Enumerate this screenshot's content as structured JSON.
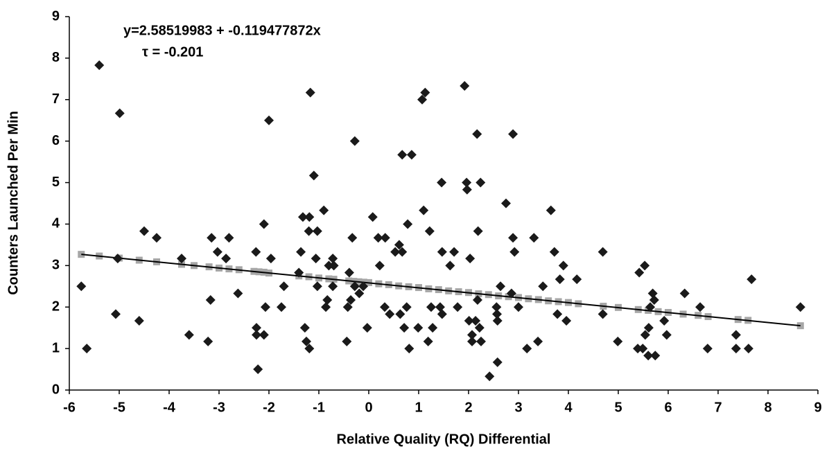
{
  "chart_data": {
    "type": "scatter",
    "annotations": [
      "y=2.58519983 + -0.119477872x",
      "τ = -0.201"
    ],
    "x_label": "Relative Quality (RQ) Differential",
    "y_label": "Counters Launched Per Min",
    "xlim": [
      -6,
      9
    ],
    "xticks": [
      -6,
      -5,
      -4,
      -3,
      -2,
      -1,
      0,
      1,
      2,
      3,
      4,
      5,
      6,
      7,
      8,
      9
    ],
    "ylim": [
      0,
      9
    ],
    "yticks": [
      0,
      1,
      2,
      3,
      4,
      5,
      6,
      7,
      8,
      9
    ],
    "grid": false,
    "series": [
      {
        "color": "#1a1a1a",
        "marker": "diamond",
        "x": [
          -5.76,
          -5.65,
          -5.4,
          -5.07,
          -4.99,
          -5.03,
          -4.6,
          -4.5,
          -4.25,
          -3.75,
          -3.6,
          -3.22,
          -3.17,
          -3.15,
          -3.03,
          -2.86,
          -2.8,
          -2.62,
          -2.26,
          -2.25,
          -2.25,
          -2.22,
          -2.1,
          -2.07,
          -2.1,
          -2.0,
          -1.96,
          -1.7,
          -1.75,
          -1.4,
          -1.36,
          -1.32,
          -1.28,
          -1.25,
          -1.19,
          -1.2,
          -1.19,
          -1.17,
          -1.1,
          -1.06,
          -1.03,
          -1.03,
          -0.9,
          -0.86,
          -0.83,
          -0.8,
          -0.72,
          -0.72,
          -0.7,
          -0.39,
          -0.42,
          -0.44,
          -0.36,
          -0.33,
          -0.28,
          -0.28,
          -0.19,
          -0.11,
          -0.03,
          0.08,
          0.19,
          0.22,
          0.32,
          0.33,
          0.42,
          0.53,
          0.61,
          0.63,
          0.67,
          0.67,
          0.71,
          0.76,
          0.78,
          0.81,
          0.86,
          0.99,
          1.07,
          1.13,
          1.1,
          1.19,
          1.22,
          1.25,
          1.28,
          1.43,
          1.46,
          1.47,
          1.47,
          1.63,
          1.71,
          1.78,
          1.92,
          1.96,
          1.97,
          2.03,
          2.01,
          2.07,
          2.07,
          2.14,
          2.17,
          2.18,
          2.19,
          2.22,
          2.24,
          2.25,
          2.42,
          2.56,
          2.57,
          2.58,
          2.58,
          2.64,
          2.75,
          2.86,
          2.89,
          2.89,
          2.92,
          3.0,
          3.17,
          3.31,
          3.39,
          3.49,
          3.65,
          3.72,
          3.78,
          3.83,
          3.9,
          3.96,
          4.17,
          4.69,
          4.69,
          4.99,
          5.39,
          5.42,
          5.49,
          5.53,
          5.54,
          5.61,
          5.6,
          5.64,
          5.69,
          5.72,
          5.74,
          5.92,
          5.97,
          6.33,
          6.64,
          6.79,
          7.36,
          7.36,
          7.61,
          7.67,
          8.65
        ],
        "values": [
          2.5,
          1.0,
          7.83,
          1.83,
          6.67,
          3.17,
          1.67,
          3.83,
          3.67,
          3.17,
          1.33,
          1.17,
          2.17,
          3.67,
          3.33,
          3.17,
          3.67,
          2.33,
          3.33,
          1.5,
          1.33,
          0.5,
          4.0,
          2.0,
          1.33,
          6.5,
          3.17,
          2.5,
          2.0,
          2.83,
          3.33,
          4.17,
          1.5,
          1.17,
          4.17,
          3.83,
          1.0,
          7.17,
          5.17,
          3.17,
          3.83,
          2.5,
          4.33,
          2.0,
          2.17,
          3.0,
          3.17,
          2.5,
          3.0,
          2.83,
          2.0,
          1.17,
          2.17,
          3.67,
          6.0,
          2.5,
          2.33,
          2.5,
          1.5,
          4.17,
          3.67,
          3.0,
          2.0,
          3.67,
          1.83,
          3.33,
          3.5,
          1.83,
          3.33,
          5.67,
          1.5,
          2.0,
          4.0,
          1.0,
          5.67,
          1.5,
          7.0,
          7.17,
          4.33,
          1.17,
          3.83,
          2.0,
          1.5,
          2.0,
          5.0,
          3.33,
          1.83,
          3.0,
          3.33,
          2.0,
          7.33,
          5.0,
          4.83,
          3.17,
          1.67,
          1.33,
          1.17,
          1.67,
          6.17,
          2.17,
          3.83,
          1.5,
          5.0,
          1.17,
          0.33,
          2.0,
          1.83,
          1.67,
          0.67,
          2.5,
          4.5,
          2.33,
          3.67,
          6.17,
          3.33,
          2.0,
          1.0,
          3.67,
          1.17,
          2.5,
          4.33,
          3.33,
          1.83,
          2.67,
          3.0,
          1.67,
          2.67,
          3.33,
          1.83,
          1.17,
          1.0,
          2.83,
          1.0,
          3.0,
          1.33,
          1.5,
          0.83,
          2.0,
          2.33,
          2.17,
          0.83,
          1.67,
          1.33,
          2.33,
          2.0,
          1.0,
          1.33,
          1.0,
          1.0,
          2.67,
          2.0
        ]
      },
      {
        "color": "#a6a6a6",
        "marker": "square",
        "x": [
          -5.76,
          -5.4,
          -5.0,
          -4.6,
          -4.25,
          -3.75,
          -3.5,
          -3.2,
          -3.0,
          -2.8,
          -2.6,
          -2.3,
          -2.2,
          -2.1,
          -2.0,
          -1.4,
          -1.2,
          -1.0,
          -0.8,
          -0.7,
          -0.4,
          -0.3,
          -0.2,
          -0.1,
          0,
          0.2,
          0.4,
          0.6,
          0.8,
          1.0,
          1.2,
          1.4,
          1.6,
          1.8,
          2.0,
          2.2,
          2.4,
          2.6,
          2.8,
          3.0,
          3.2,
          3.4,
          3.6,
          3.8,
          4.0,
          4.2,
          4.7,
          5.0,
          5.4,
          5.6,
          5.8,
          6.0,
          6.3,
          6.6,
          6.8,
          7.4,
          7.6,
          8.65
        ],
        "values": [
          3.27,
          3.23,
          3.18,
          3.13,
          3.09,
          3.03,
          3.0,
          2.97,
          2.94,
          2.92,
          2.9,
          2.86,
          2.85,
          2.84,
          2.82,
          2.75,
          2.73,
          2.7,
          2.68,
          2.67,
          2.63,
          2.62,
          2.61,
          2.6,
          2.59,
          2.56,
          2.54,
          2.51,
          2.49,
          2.47,
          2.44,
          2.42,
          2.39,
          2.37,
          2.35,
          2.32,
          2.3,
          2.27,
          2.25,
          2.23,
          2.2,
          2.18,
          2.15,
          2.13,
          2.11,
          2.08,
          2.02,
          1.99,
          1.94,
          1.92,
          1.89,
          1.87,
          1.83,
          1.8,
          1.77,
          1.7,
          1.68,
          1.55
        ]
      }
    ],
    "trendline": {
      "color": "#000000",
      "x": [
        -5.76,
        8.65
      ],
      "y": [
        3.27,
        1.55
      ]
    }
  }
}
